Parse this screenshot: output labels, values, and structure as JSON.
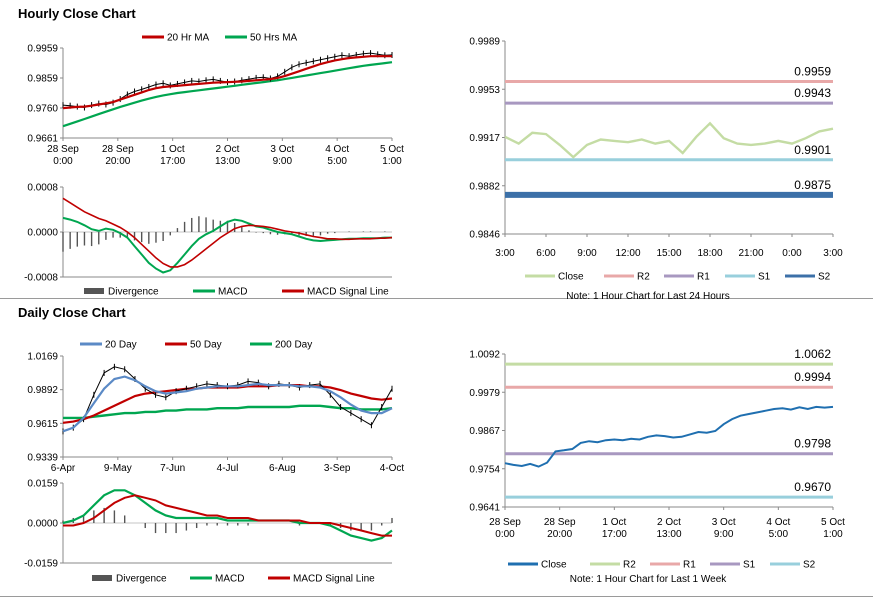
{
  "sections": {
    "hourly_title": "Hourly Close Chart",
    "daily_title": "Daily Close Chart"
  },
  "colors": {
    "price": "#000000",
    "ma_red": "#c00000",
    "ma_green": "#00a650",
    "ma_blue": "#5b8ac6",
    "macd_green": "#00a650",
    "signal_red": "#c00000",
    "divergence": "#555555",
    "close_light": "#c4dca4",
    "close_blue": "#1f6fb0",
    "r2_pink": "#e8a8a8",
    "r1_purple": "#a898c0",
    "s1_cyan": "#98cfdc",
    "s2_blue": "#3c70a8",
    "r2_green": "#c4dca4",
    "r1_pink": "#e8a8a8",
    "s1_purple": "#a898c0",
    "s2_cyan": "#98cfdc"
  },
  "chart_data": [
    {
      "id": "hourly-price",
      "type": "line",
      "x_labels": [
        [
          "28 Sep",
          "0:00"
        ],
        [
          "28 Sep",
          "20:00"
        ],
        [
          "1 Oct",
          "17:00"
        ],
        [
          "2 Oct",
          "13:00"
        ],
        [
          "3 Oct",
          "9:00"
        ],
        [
          "4 Oct",
          "5:00"
        ],
        [
          "5 Oct",
          "1:00"
        ]
      ],
      "y_ticks": [
        "0.9959",
        "0.9859",
        "0.9760",
        "0.9661"
      ],
      "ylim": [
        0.9661,
        0.9959
      ],
      "legend": [
        "20 Hr MA",
        "50 Hrs MA"
      ],
      "series": [
        {
          "name": "Price",
          "values": [
            0.977,
            0.9768,
            0.9765,
            0.9762,
            0.977,
            0.9775,
            0.9772,
            0.9778,
            0.979,
            0.9805,
            0.9815,
            0.9822,
            0.983,
            0.9838,
            0.9842,
            0.9835,
            0.984,
            0.9845,
            0.985,
            0.9848,
            0.9852,
            0.9855,
            0.985,
            0.9846,
            0.9848,
            0.9852,
            0.9856,
            0.986,
            0.9862,
            0.9858,
            0.9865,
            0.988,
            0.9895,
            0.9905,
            0.991,
            0.9915,
            0.992,
            0.9925,
            0.993,
            0.9935,
            0.9932,
            0.9936,
            0.994,
            0.9942,
            0.9938,
            0.9935,
            0.9936
          ]
        },
        {
          "name": "20 Hr MA",
          "values": [
            0.976,
            0.9762,
            0.9764,
            0.9765,
            0.9768,
            0.9772,
            0.9776,
            0.978,
            0.9788,
            0.9796,
            0.9804,
            0.9812,
            0.982,
            0.9826,
            0.983,
            0.9832,
            0.9834,
            0.9836,
            0.9838,
            0.984,
            0.9842,
            0.9844,
            0.9845,
            0.9846,
            0.9847,
            0.9848,
            0.985,
            0.9852,
            0.9854,
            0.9856,
            0.986,
            0.9866,
            0.9874,
            0.9882,
            0.989,
            0.9898,
            0.9906,
            0.9912,
            0.9918,
            0.9922,
            0.9926,
            0.9928,
            0.993,
            0.9932,
            0.9932,
            0.9932,
            0.9932
          ]
        },
        {
          "name": "50 Hrs MA",
          "values": [
            0.97,
            0.9708,
            0.9716,
            0.9724,
            0.9732,
            0.974,
            0.9748,
            0.9756,
            0.9764,
            0.9771,
            0.9778,
            0.9785,
            0.9791,
            0.9797,
            0.9802,
            0.9806,
            0.981,
            0.9813,
            0.9816,
            0.9819,
            0.9822,
            0.9825,
            0.9828,
            0.9831,
            0.9834,
            0.9837,
            0.984,
            0.9843,
            0.9846,
            0.9849,
            0.9852,
            0.9856,
            0.986,
            0.9864,
            0.9868,
            0.9872,
            0.9876,
            0.988,
            0.9884,
            0.9888,
            0.9892,
            0.9896,
            0.99,
            0.9903,
            0.9906,
            0.9909,
            0.9912
          ]
        }
      ]
    },
    {
      "id": "hourly-macd",
      "type": "line",
      "y_ticks": [
        "0.0008",
        "0.0000",
        "-0.0008"
      ],
      "ylim": [
        -0.0008,
        0.0008
      ],
      "legend": [
        "Divergence",
        "MACD",
        "MACD Signal Line"
      ],
      "series": [
        {
          "name": "MACD",
          "values": [
            0.00025,
            0.00022,
            0.00018,
            0.00012,
            5e-05,
            2e-05,
            6e-05,
            4e-05,
            -2e-05,
            -0.0001,
            -0.00025,
            -0.0004,
            -0.00055,
            -0.00065,
            -0.00072,
            -0.00068,
            -0.00055,
            -0.0004,
            -0.00025,
            -0.00012,
            -4e-05,
            2e-05,
            0.0001,
            0.00018,
            0.00022,
            0.0002,
            0.00015,
            0.0001,
            8e-05,
            4e-05,
            0.0,
            -2e-05,
            -4e-05,
            -8e-05,
            -0.00012,
            -0.00015,
            -0.00016,
            -0.00015,
            -0.00014,
            -0.00013,
            -0.00012,
            -0.00012,
            -0.00011,
            -0.00011,
            -0.00011,
            -0.0001,
            -0.0001
          ]
        },
        {
          "name": "MACD Signal Line",
          "values": [
            0.0006,
            0.00052,
            0.00044,
            0.00036,
            0.0003,
            0.00024,
            0.0002,
            0.00014,
            8e-05,
            0.0,
            -0.0001,
            -0.00022,
            -0.00034,
            -0.00046,
            -0.00056,
            -0.00062,
            -0.00062,
            -0.00058,
            -0.0005,
            -0.0004,
            -0.0003,
            -0.0002,
            -0.0001,
            -2e-05,
            6e-05,
            0.0001,
            0.00012,
            0.00011,
            0.0001,
            8e-05,
            5e-05,
            2e-05,
            0.0,
            -2e-05,
            -5e-05,
            -8e-05,
            -0.0001,
            -0.00012,
            -0.00012,
            -0.00013,
            -0.00013,
            -0.00012,
            -0.00012,
            -0.00012,
            -0.00011,
            -0.00011,
            -0.0001
          ]
        }
      ]
    },
    {
      "id": "hourly-levels",
      "type": "line",
      "x_labels": [
        "3:00",
        "6:00",
        "9:00",
        "12:00",
        "15:00",
        "18:00",
        "21:00",
        "0:00",
        "3:00"
      ],
      "y_ticks": [
        "0.9989",
        "0.9953",
        "0.9917",
        "0.9882",
        "0.9846"
      ],
      "ylim": [
        0.9846,
        0.9989
      ],
      "legend": [
        "Close",
        "R2",
        "R1",
        "S1",
        "S2"
      ],
      "note": "Note: 1 Hour Chart for Last 24 Hours",
      "levels": [
        {
          "name": "R2",
          "value": 0.9959,
          "label": "0.9959"
        },
        {
          "name": "R1",
          "value": 0.9943,
          "label": "0.9943"
        },
        {
          "name": "S1",
          "value": 0.9901,
          "label": "0.9901"
        },
        {
          "name": "S2",
          "value": 0.9875,
          "label": "0.9875"
        }
      ],
      "series": [
        {
          "name": "Close",
          "values": [
            0.9918,
            0.9913,
            0.9921,
            0.992,
            0.9912,
            0.9903,
            0.9912,
            0.9916,
            0.9915,
            0.9914,
            0.9916,
            0.9913,
            0.9915,
            0.9906,
            0.9918,
            0.9928,
            0.9917,
            0.9913,
            0.9912,
            0.9913,
            0.9915,
            0.9913,
            0.9917,
            0.9922,
            0.9924
          ]
        }
      ]
    },
    {
      "id": "daily-price",
      "type": "line",
      "x_labels": [
        "6-Apr",
        "9-May",
        "7-Jun",
        "4-Jul",
        "6-Aug",
        "3-Sep",
        "4-Oct"
      ],
      "y_ticks": [
        "1.0169",
        "0.9892",
        "0.9615",
        "0.9339"
      ],
      "ylim": [
        0.9339,
        1.0169
      ],
      "legend": [
        "20 Day",
        "50 Day",
        "200 Day"
      ],
      "series": [
        {
          "name": "Price",
          "values": [
            0.955,
            0.958,
            0.965,
            0.985,
            1.003,
            1.008,
            1.006,
            0.998,
            0.99,
            0.985,
            0.983,
            0.988,
            0.99,
            0.992,
            0.994,
            0.993,
            0.992,
            0.993,
            0.996,
            0.995,
            0.992,
            0.994,
            0.993,
            0.991,
            0.993,
            0.994,
            0.985,
            0.975,
            0.97,
            0.965,
            0.96,
            0.975,
            0.99
          ]
        },
        {
          "name": "20 Day",
          "values": [
            0.955,
            0.958,
            0.966,
            0.978,
            0.99,
            0.998,
            1.0,
            0.997,
            0.992,
            0.988,
            0.986,
            0.987,
            0.988,
            0.99,
            0.991,
            0.992,
            0.992,
            0.992,
            0.993,
            0.994,
            0.993,
            0.993,
            0.993,
            0.992,
            0.992,
            0.991,
            0.988,
            0.983,
            0.977,
            0.972,
            0.97,
            0.97,
            0.974
          ]
        },
        {
          "name": "50 Day",
          "values": [
            0.962,
            0.963,
            0.965,
            0.968,
            0.972,
            0.976,
            0.98,
            0.984,
            0.986,
            0.987,
            0.988,
            0.989,
            0.99,
            0.99,
            0.991,
            0.991,
            0.991,
            0.991,
            0.992,
            0.992,
            0.992,
            0.993,
            0.993,
            0.993,
            0.992,
            0.992,
            0.991,
            0.989,
            0.986,
            0.984,
            0.982,
            0.981,
            0.982
          ]
        },
        {
          "name": "200 Day",
          "values": [
            0.966,
            0.966,
            0.966,
            0.967,
            0.968,
            0.969,
            0.97,
            0.97,
            0.971,
            0.971,
            0.972,
            0.972,
            0.973,
            0.973,
            0.973,
            0.974,
            0.974,
            0.974,
            0.975,
            0.975,
            0.975,
            0.975,
            0.975,
            0.976,
            0.976,
            0.976,
            0.975,
            0.974,
            0.974,
            0.973,
            0.973,
            0.973,
            0.974
          ]
        }
      ]
    },
    {
      "id": "daily-macd",
      "type": "line",
      "y_ticks": [
        "0.0159",
        "0.0000",
        "-0.0159"
      ],
      "ylim": [
        -0.0159,
        0.0159
      ],
      "legend": [
        "Divergence",
        "MACD",
        "MACD Signal Line"
      ],
      "series": [
        {
          "name": "MACD",
          "values": [
            0.0,
            0.001,
            0.003,
            0.007,
            0.011,
            0.013,
            0.013,
            0.011,
            0.008,
            0.005,
            0.003,
            0.002,
            0.002,
            0.002,
            0.002,
            0.002,
            0.001,
            0.001,
            0.001,
            0.001,
            0.001,
            0.001,
            0.001,
            0.0,
            0.0,
            0.0,
            -0.001,
            -0.003,
            -0.005,
            -0.006,
            -0.007,
            -0.006,
            -0.003
          ]
        },
        {
          "name": "MACD Signal Line",
          "values": [
            -0.001,
            -0.001,
            0.0,
            0.002,
            0.005,
            0.008,
            0.01,
            0.011,
            0.01,
            0.009,
            0.007,
            0.006,
            0.005,
            0.004,
            0.003,
            0.003,
            0.002,
            0.002,
            0.002,
            0.001,
            0.001,
            0.001,
            0.001,
            0.001,
            0.0,
            0.0,
            0.0,
            -0.001,
            -0.002,
            -0.003,
            -0.004,
            -0.005,
            -0.005
          ]
        }
      ]
    },
    {
      "id": "daily-levels",
      "type": "line",
      "x_labels": [
        [
          "28 Sep",
          "0:00"
        ],
        [
          "28 Sep",
          "20:00"
        ],
        [
          "1 Oct",
          "17:00"
        ],
        [
          "2 Oct",
          "13:00"
        ],
        [
          "3 Oct",
          "9:00"
        ],
        [
          "4 Oct",
          "5:00"
        ],
        [
          "5 Oct",
          "1:00"
        ]
      ],
      "y_ticks": [
        "1.0092",
        "0.9979",
        "0.9867",
        "0.9754",
        "0.9641"
      ],
      "ylim": [
        0.9641,
        1.0092
      ],
      "legend": [
        "Close",
        "R2",
        "R1",
        "S1",
        "S2"
      ],
      "note": "Note: 1 Hour Chart for Last 1 Week",
      "levels": [
        {
          "name": "R2",
          "value": 1.0062,
          "label": "1.0062"
        },
        {
          "name": "R1",
          "value": 0.9994,
          "label": "0.9994"
        },
        {
          "name": "S1",
          "value": 0.9798,
          "label": "0.9798"
        },
        {
          "name": "S2",
          "value": 0.967,
          "label": "0.9670"
        }
      ],
      "series": [
        {
          "name": "Close",
          "values": [
            0.977,
            0.9765,
            0.9762,
            0.9768,
            0.976,
            0.9772,
            0.9805,
            0.9808,
            0.9812,
            0.983,
            0.9835,
            0.9832,
            0.9838,
            0.984,
            0.9838,
            0.9842,
            0.984,
            0.9848,
            0.9852,
            0.985,
            0.9846,
            0.9848,
            0.9855,
            0.9862,
            0.986,
            0.9865,
            0.9885,
            0.99,
            0.991,
            0.9915,
            0.992,
            0.9925,
            0.993,
            0.9932,
            0.9928,
            0.9935,
            0.993,
            0.9936,
            0.9934,
            0.9936
          ]
        }
      ]
    }
  ]
}
